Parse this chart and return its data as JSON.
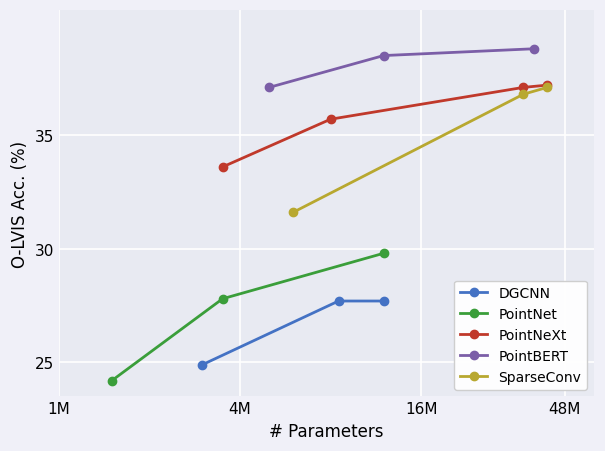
{
  "series": [
    {
      "label": "DGCNN",
      "color": "#4472c4",
      "x": [
        3000000,
        8500000,
        12000000
      ],
      "y": [
        24.9,
        27.7,
        27.7
      ]
    },
    {
      "label": "PointNet",
      "color": "#3a9e3a",
      "x": [
        1500000,
        3500000,
        12000000
      ],
      "y": [
        24.2,
        27.8,
        29.8
      ]
    },
    {
      "label": "PointNeXt",
      "color": "#c0392b",
      "x": [
        3500000,
        8000000,
        35000000,
        42000000
      ],
      "y": [
        33.6,
        35.7,
        37.1,
        37.2
      ]
    },
    {
      "label": "PointBERT",
      "color": "#7b5ea7",
      "x": [
        5000000,
        12000000,
        38000000
      ],
      "y": [
        37.1,
        38.5,
        38.8
      ]
    },
    {
      "label": "SparseConv",
      "color": "#b8a830",
      "x": [
        6000000,
        35000000,
        42000000
      ],
      "y": [
        31.6,
        36.8,
        37.1
      ]
    }
  ],
  "xlabel": "# Parameters",
  "ylabel": "O-LVIS Acc. (%)",
  "xlim": [
    1000000,
    60000000
  ],
  "ylim": [
    23.5,
    40.5
  ],
  "xticks": [
    1000000,
    4000000,
    16000000,
    48000000
  ],
  "xtick_labels": [
    "1M",
    "4M",
    "16M",
    "48M"
  ],
  "yticks": [
    25,
    30,
    35
  ],
  "ax_facecolor": "#e8eaf2",
  "fig_facecolor": "#f0f0f8",
  "legend_loc": "lower right",
  "grid_color": "#ffffff",
  "marker_size": 6,
  "line_width": 2
}
